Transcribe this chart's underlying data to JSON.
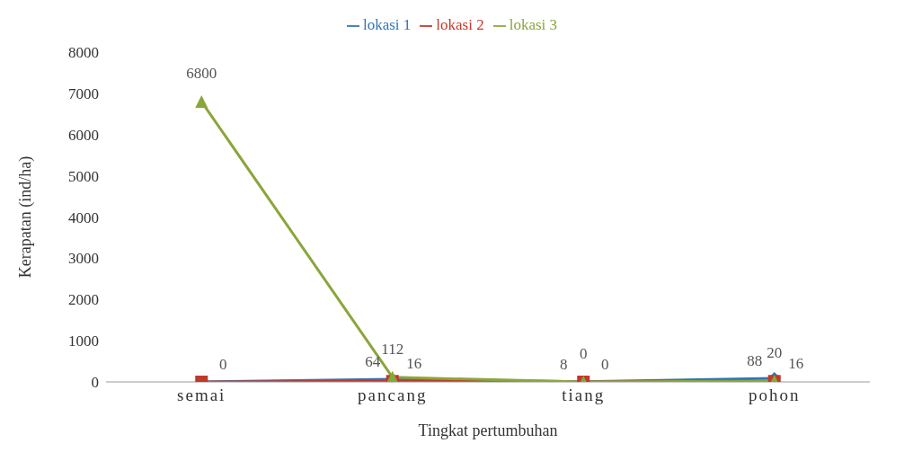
{
  "chart_data": {
    "type": "line",
    "xlabel": "Tingkat pertumbuhan",
    "ylabel": "Kerapatan (ind/ha)",
    "categories": [
      "semai",
      "pancang",
      "tiang",
      "pohon"
    ],
    "ylim": [
      0,
      8000
    ],
    "yticks": [
      0,
      1000,
      2000,
      3000,
      4000,
      5000,
      6000,
      7000,
      8000
    ],
    "legend": "top",
    "series": [
      {
        "name": "lokasi 1",
        "color": "#2e75b6",
        "marker": "diamond",
        "values": [
          0,
          64,
          8,
          88
        ],
        "value_labels": [
          null,
          "64",
          "8",
          "88"
        ]
      },
      {
        "name": "lokasi 2",
        "color": "#c0392b",
        "marker": "square",
        "values": [
          0,
          16,
          0,
          16
        ],
        "value_labels": [
          "0",
          "16",
          "0",
          "16"
        ]
      },
      {
        "name": "lokasi 3",
        "color": "#8aa63a",
        "marker": "triangle",
        "values": [
          6800,
          112,
          0,
          20
        ],
        "value_labels": [
          "6800",
          "112",
          "0",
          "20"
        ]
      }
    ]
  }
}
